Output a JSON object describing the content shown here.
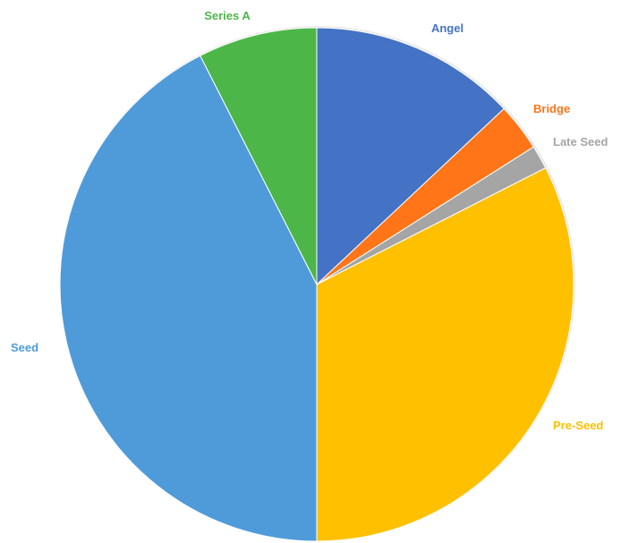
{
  "chart_data": {
    "type": "pie",
    "title": "",
    "start_angle_deg": 0,
    "direction": "clockwise",
    "slices": [
      {
        "label": "Angel",
        "value": 13.0,
        "color": "#4472C4"
      },
      {
        "label": "Bridge",
        "value": 3.0,
        "color": "#FF7518"
      },
      {
        "label": "Late Seed",
        "value": 1.5,
        "color": "#A5A5A5"
      },
      {
        "label": "Pre-Seed",
        "value": 32.5,
        "color": "#FFC000"
      },
      {
        "label": "Seed",
        "value": 42.5,
        "color": "#4F9BDA"
      },
      {
        "label": "Series A",
        "value": 7.5,
        "color": "#4CB648"
      }
    ]
  }
}
